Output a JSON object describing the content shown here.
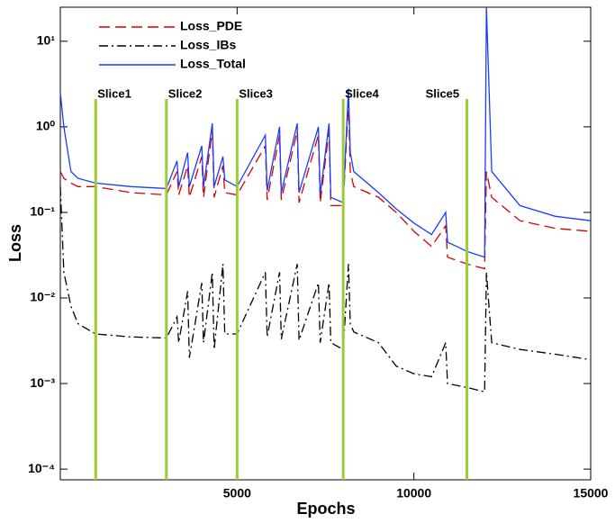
{
  "chart_data": {
    "type": "line",
    "xlabel": "Epochs",
    "ylabel": "Loss",
    "log_y": true,
    "xlim": [
      0,
      15000
    ],
    "xticks": [
      5000,
      10000,
      15000
    ],
    "ylim": [
      7.5e-05,
      25
    ],
    "yticks": [
      {
        "value": 0.0001,
        "label": "10⁻⁴"
      },
      {
        "value": 0.001,
        "label": "10⁻³"
      },
      {
        "value": 0.01,
        "label": "10⁻²"
      },
      {
        "value": 0.1,
        "label": "10⁻¹"
      },
      {
        "value": 1,
        "label": "10⁰"
      },
      {
        "value": 10,
        "label": "10¹"
      }
    ],
    "legend": "upper left",
    "slices": {
      "color": "#9acd32",
      "x": [
        1000,
        3000,
        5000,
        8000,
        11500
      ],
      "labels": [
        "Slice1",
        "Slice2",
        "Slice3",
        "Slice4",
        "Slice5"
      ]
    },
    "x": [
      0,
      100,
      300,
      500,
      1000,
      2000,
      3000,
      3300,
      3350,
      3600,
      3650,
      4000,
      4050,
      4300,
      4350,
      4600,
      4650,
      5000,
      5800,
      5850,
      6200,
      6250,
      6700,
      6750,
      7300,
      7350,
      7600,
      7650,
      8000,
      8150,
      8200,
      8300,
      9000,
      9500,
      10000,
      10500,
      10900,
      10950,
      11500,
      12000,
      12050,
      12200,
      13000,
      14000,
      15000
    ],
    "series": [
      {
        "name": "Loss_PDE",
        "color": "#d40000",
        "dash": "dashed",
        "values": [
          0.3,
          0.25,
          0.22,
          0.2,
          0.2,
          0.17,
          0.16,
          0.3,
          0.16,
          0.35,
          0.15,
          0.45,
          0.15,
          0.9,
          0.15,
          0.35,
          0.17,
          0.16,
          0.6,
          0.14,
          0.8,
          0.14,
          0.9,
          0.13,
          0.8,
          0.13,
          0.9,
          0.12,
          0.12,
          2.0,
          0.3,
          0.2,
          0.15,
          0.1,
          0.06,
          0.04,
          0.07,
          0.03,
          0.025,
          0.022,
          0.3,
          0.15,
          0.08,
          0.065,
          0.06
        ]
      },
      {
        "name": "Loss_IBs",
        "color": "#000000",
        "dash": "dashdot",
        "values": [
          0.2,
          0.02,
          0.008,
          0.005,
          0.0038,
          0.0035,
          0.0034,
          0.006,
          0.003,
          0.012,
          0.002,
          0.015,
          0.003,
          0.02,
          0.0025,
          0.025,
          0.0038,
          0.0038,
          0.02,
          0.0035,
          0.02,
          0.0033,
          0.025,
          0.0032,
          0.015,
          0.003,
          0.015,
          0.003,
          0.0025,
          0.025,
          0.005,
          0.004,
          0.003,
          0.0016,
          0.0013,
          0.0012,
          0.003,
          0.001,
          0.0009,
          0.0008,
          0.02,
          0.003,
          0.0025,
          0.0022,
          0.0019
        ]
      },
      {
        "name": "Loss_Total",
        "color": "#1a3cff",
        "dash": "solid",
        "values": [
          2.5,
          1.0,
          0.3,
          0.25,
          0.22,
          0.2,
          0.19,
          0.4,
          0.2,
          0.5,
          0.2,
          0.6,
          0.2,
          1.1,
          0.2,
          0.45,
          0.24,
          0.2,
          0.8,
          0.18,
          1.0,
          0.17,
          1.1,
          0.17,
          1.0,
          0.16,
          1.1,
          0.15,
          0.13,
          2.8,
          0.5,
          0.3,
          0.17,
          0.11,
          0.075,
          0.055,
          0.1,
          0.045,
          0.035,
          0.03,
          25,
          0.3,
          0.12,
          0.09,
          0.08
        ]
      }
    ]
  }
}
